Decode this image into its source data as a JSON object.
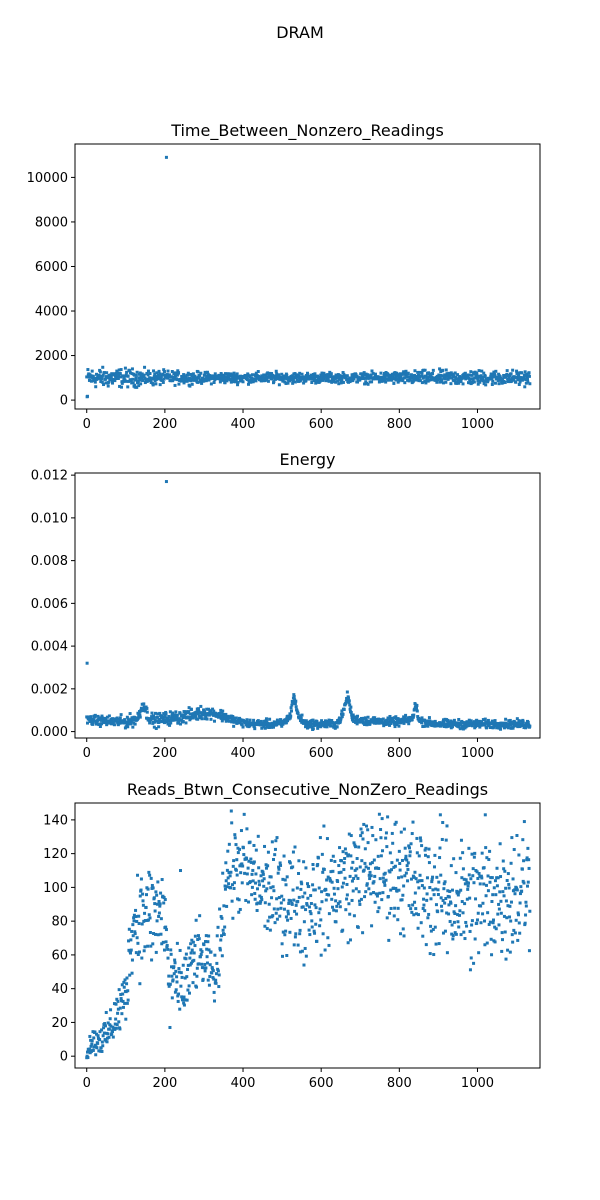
{
  "figure": {
    "suptitle": "DRAM",
    "point_color": "#1f77b4"
  },
  "chart_data": [
    {
      "type": "scatter",
      "title": "Time_Between_Nonzero_Readings",
      "xlim": [
        -30,
        1160
      ],
      "ylim": [
        -400,
        11500
      ],
      "xticks": [
        0,
        200,
        400,
        600,
        800,
        1000
      ],
      "yticks": [
        0,
        2000,
        4000,
        6000,
        8000,
        10000
      ],
      "n_points": 1135,
      "profile": [
        [
          0,
          1000
        ],
        [
          1134,
          1000
        ]
      ],
      "spread": [
        [
          0,
          220
        ],
        [
          100,
          200
        ],
        [
          200,
          150
        ],
        [
          300,
          120
        ],
        [
          400,
          120
        ],
        [
          500,
          120
        ],
        [
          600,
          110
        ],
        [
          700,
          110
        ],
        [
          800,
          140
        ],
        [
          900,
          160
        ],
        [
          1000,
          160
        ],
        [
          1134,
          160
        ]
      ],
      "outliers": [
        [
          1,
          150
        ],
        [
          2,
          170
        ],
        [
          204,
          10900
        ]
      ]
    },
    {
      "type": "scatter",
      "title": "Energy",
      "xlim": [
        -30,
        1160
      ],
      "ylim": [
        -0.0003,
        0.0121
      ],
      "xticks": [
        0,
        200,
        400,
        600,
        800,
        1000
      ],
      "yticks": [
        0.0,
        0.002,
        0.004,
        0.006,
        0.008,
        0.01,
        0.012
      ],
      "ytick_labels": [
        "0.000",
        "0.002",
        "0.004",
        "0.006",
        "0.008",
        "0.010",
        "0.012"
      ],
      "n_points": 1135,
      "profile": [
        [
          0,
          0.00055
        ],
        [
          40,
          0.0005
        ],
        [
          100,
          0.00045
        ],
        [
          130,
          0.0006
        ],
        [
          145,
          0.0013
        ],
        [
          155,
          0.0008
        ],
        [
          170,
          0.0005
        ],
        [
          200,
          0.0006
        ],
        [
          250,
          0.0007
        ],
        [
          300,
          0.0009
        ],
        [
          340,
          0.0008
        ],
        [
          380,
          0.0005
        ],
        [
          420,
          0.00035
        ],
        [
          500,
          0.00035
        ],
        [
          520,
          0.0007
        ],
        [
          530,
          0.0017
        ],
        [
          540,
          0.0008
        ],
        [
          560,
          0.00035
        ],
        [
          640,
          0.00035
        ],
        [
          655,
          0.0008
        ],
        [
          668,
          0.0017
        ],
        [
          680,
          0.0006
        ],
        [
          720,
          0.0005
        ],
        [
          800,
          0.00045
        ],
        [
          835,
          0.0006
        ],
        [
          842,
          0.0014
        ],
        [
          850,
          0.0005
        ],
        [
          900,
          0.00035
        ],
        [
          1134,
          0.00035
        ]
      ],
      "spread": [
        [
          0,
          0.0001
        ],
        [
          140,
          0.00015
        ],
        [
          300,
          0.00015
        ],
        [
          400,
          0.0001
        ],
        [
          1134,
          0.0001
        ]
      ],
      "outliers": [
        [
          1,
          0.0032
        ],
        [
          204,
          0.0117
        ]
      ]
    },
    {
      "type": "scatter",
      "title": "Reads_Btwn_Consecutive_NonZero_Readings",
      "xlim": [
        -30,
        1160
      ],
      "ylim": [
        -7,
        150
      ],
      "xticks": [
        0,
        200,
        400,
        600,
        800,
        1000
      ],
      "yticks": [
        0,
        20,
        40,
        60,
        80,
        100,
        120,
        140
      ],
      "n_points": 1135,
      "profile": [
        [
          0,
          2
        ],
        [
          10,
          8
        ],
        [
          50,
          12
        ],
        [
          100,
          35
        ],
        [
          115,
          75
        ],
        [
          130,
          82
        ],
        [
          200,
          85
        ],
        [
          210,
          45
        ],
        [
          250,
          42
        ],
        [
          280,
          60
        ],
        [
          310,
          55
        ],
        [
          330,
          45
        ],
        [
          345,
          80
        ],
        [
          360,
          110
        ],
        [
          400,
          112
        ],
        [
          450,
          100
        ],
        [
          500,
          95
        ],
        [
          560,
          92
        ],
        [
          620,
          98
        ],
        [
          700,
          108
        ],
        [
          800,
          110
        ],
        [
          850,
          100
        ],
        [
          900,
          95
        ],
        [
          1000,
          92
        ],
        [
          1050,
          95
        ],
        [
          1134,
          100
        ]
      ],
      "spread": [
        [
          0,
          3
        ],
        [
          60,
          6
        ],
        [
          110,
          10
        ],
        [
          130,
          16
        ],
        [
          200,
          16
        ],
        [
          210,
          8
        ],
        [
          260,
          12
        ],
        [
          330,
          6
        ],
        [
          345,
          14
        ],
        [
          400,
          14
        ],
        [
          600,
          16
        ],
        [
          800,
          17
        ],
        [
          1134,
          20
        ]
      ],
      "outliers": [
        [
          1,
          0
        ],
        [
          213,
          17
        ],
        [
          240,
          110
        ],
        [
          556,
          54
        ],
        [
          990,
          55
        ],
        [
          1020,
          143
        ],
        [
          905,
          143
        ],
        [
          1120,
          139
        ]
      ]
    }
  ]
}
